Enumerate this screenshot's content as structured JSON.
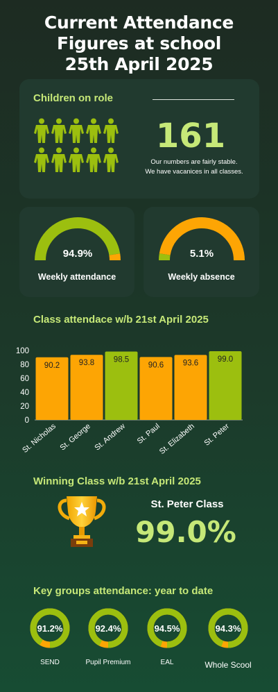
{
  "title": {
    "line1": "Current Attendance",
    "line2": "Figures at school",
    "line3": "25th April 2025"
  },
  "on_role": {
    "heading": "Children on role",
    "count": "161",
    "note_line1": "Our numbers are fairly stable.",
    "note_line2": "We have vacanices in all classes.",
    "icon": "person-icon",
    "icon_color": "#9cbf0f"
  },
  "weekly_attendance": {
    "value": "94.9%",
    "fraction": 0.949,
    "label": "Weekly attendance"
  },
  "weekly_absence": {
    "value": "5.1%",
    "fraction": 0.051,
    "label": "Weekly absence"
  },
  "colors": {
    "green": "#9cbf0f",
    "orange": "#fda504",
    "accent_text": "#c6e878",
    "card": "#213a2f"
  },
  "class_attendance": {
    "heading": "Class attendace w/b 21st April 2025"
  },
  "chart_data": {
    "type": "bar",
    "categories": [
      "St. Nicholas",
      "St. George",
      "St. Andrew",
      "St. Paul",
      "St. Elizabeth",
      "St. Peter"
    ],
    "values": [
      90.2,
      93.8,
      98.5,
      90.6,
      93.6,
      99.0
    ],
    "value_labels": [
      "90.2",
      "93.8",
      "98.5",
      "90.6",
      "93.6",
      "99.0"
    ],
    "bar_colors": [
      "#fda504",
      "#fda504",
      "#9cbf0f",
      "#fda504",
      "#fda504",
      "#9cbf0f"
    ],
    "ylim": [
      0,
      100
    ],
    "yticks": [
      "0",
      "20",
      "40",
      "60",
      "80",
      "100"
    ],
    "title": "Class attendace w/b 21st April 2025",
    "xlabel": "",
    "ylabel": "",
    "grid": false
  },
  "winning": {
    "heading": "Winning Class w/b 21st April 2025",
    "name": "St. Peter Class",
    "value": "99.0%",
    "icon": "trophy-icon"
  },
  "key_groups": {
    "heading": "Key groups attendance: year to date",
    "items": [
      {
        "value": "91.2%",
        "fraction": 0.912,
        "label": "SEND"
      },
      {
        "value": "92.4%",
        "fraction": 0.924,
        "label": "Pupil Premium"
      },
      {
        "value": "94.5%",
        "fraction": 0.945,
        "label": "EAL"
      },
      {
        "value": "94.3%",
        "fraction": 0.943,
        "label": "Whole Scool"
      }
    ]
  }
}
